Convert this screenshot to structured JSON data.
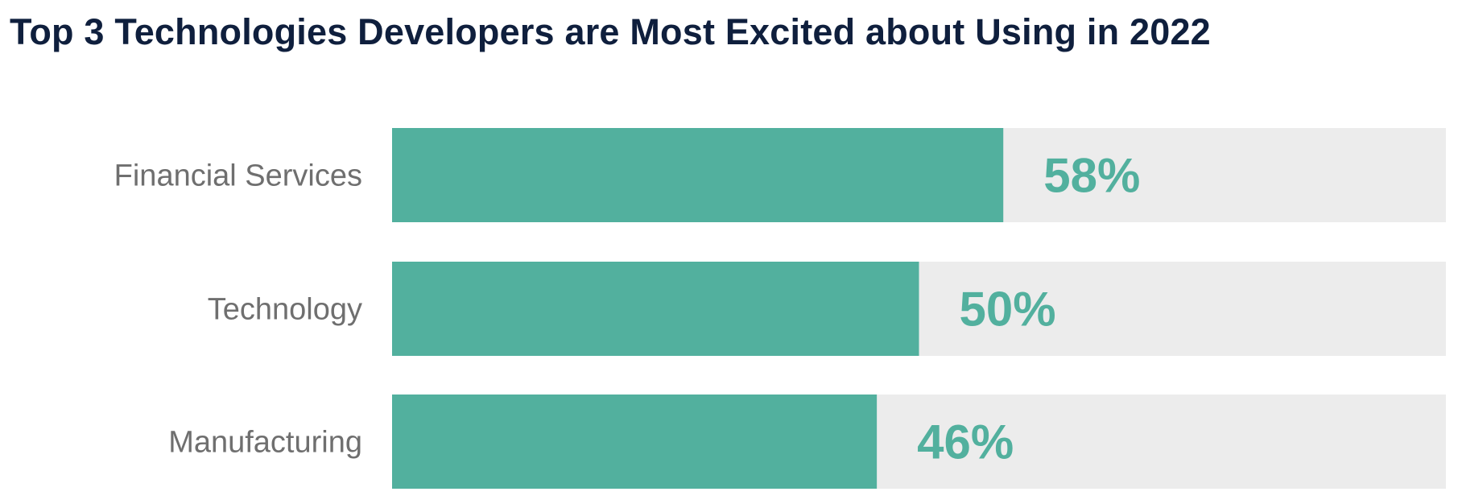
{
  "chart_data": {
    "type": "bar",
    "orientation": "horizontal",
    "title": "Top 3 Technologies Developers are Most Excited about Using in 2022",
    "categories": [
      "Financial Services",
      "Technology",
      "Manufacturing"
    ],
    "values": [
      58,
      50,
      46
    ],
    "data_labels": [
      "58%",
      "50%",
      "46%"
    ],
    "xlim": [
      0,
      100
    ],
    "grid": false,
    "legend": "none",
    "colors": {
      "bar": "#52b09e",
      "track": "#ececec",
      "title": "#0f1f3d",
      "label": "#6f6f6f",
      "value": "#52b09e"
    }
  }
}
